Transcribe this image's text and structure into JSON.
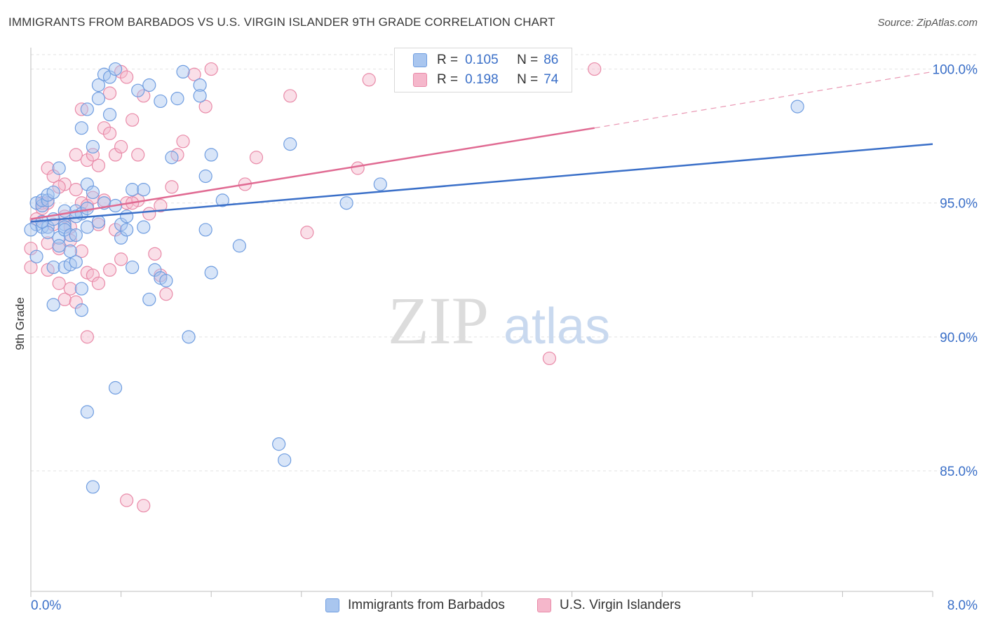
{
  "title": "IMMIGRANTS FROM BARBADOS VS U.S. VIRGIN ISLANDER 9TH GRADE CORRELATION CHART",
  "source": "Source: ZipAtlas.com",
  "watermark": {
    "zip": "ZIP",
    "atlas": "atlas"
  },
  "legend": {
    "r_label": "R =",
    "n_label": "N =",
    "series": [
      {
        "name": "Immigrants from Barbados",
        "r": "0.105",
        "n": "86"
      },
      {
        "name": "U.S. Virgin Islanders",
        "r": "0.198",
        "n": "74"
      }
    ]
  },
  "colors": {
    "blue_fill": "#a9c6ef",
    "blue_stroke": "#6f9de0",
    "blue_line": "#3a6fc8",
    "pink_fill": "#f5b7cb",
    "pink_stroke": "#e98aa8",
    "pink_line": "#e06a92",
    "tick_label": "#3a6fc8"
  },
  "chart_data": {
    "type": "scatter",
    "title": "IMMIGRANTS FROM BARBADOS VS U.S. VIRGIN ISLANDER 9TH GRADE CORRELATION CHART",
    "xlabel": "",
    "ylabel": "9th Grade",
    "xlim": [
      0,
      8
    ],
    "ylim": [
      80.5,
      100.8
    ],
    "x_tick_labels": [
      "0.0%",
      "8.0%"
    ],
    "y_ticks": [
      85,
      90,
      95,
      100
    ],
    "y_tick_labels": [
      "85.0%",
      "90.0%",
      "95.0%",
      "100.0%"
    ],
    "grid": true,
    "series": [
      {
        "name": "Immigrants from Barbados",
        "trend": {
          "x": [
            0,
            8
          ],
          "y": [
            94.3,
            97.2
          ]
        },
        "points": [
          [
            0.05,
            93.0
          ],
          [
            0.05,
            94.2
          ],
          [
            0.05,
            95.0
          ],
          [
            0.1,
            94.9
          ],
          [
            0.1,
            94.1
          ],
          [
            0.1,
            95.1
          ],
          [
            0.15,
            94.1
          ],
          [
            0.15,
            93.9
          ],
          [
            0.15,
            95.1
          ],
          [
            0.15,
            95.3
          ],
          [
            0.2,
            95.4
          ],
          [
            0.2,
            94.4
          ],
          [
            0.2,
            92.6
          ],
          [
            0.2,
            91.2
          ],
          [
            0.25,
            96.3
          ],
          [
            0.25,
            93.7
          ],
          [
            0.25,
            93.4
          ],
          [
            0.3,
            94.2
          ],
          [
            0.3,
            94.1
          ],
          [
            0.3,
            94.0
          ],
          [
            0.3,
            92.6
          ],
          [
            0.35,
            93.8
          ],
          [
            0.35,
            93.2
          ],
          [
            0.35,
            92.7
          ],
          [
            0.4,
            94.7
          ],
          [
            0.4,
            93.8
          ],
          [
            0.4,
            92.8
          ],
          [
            0.45,
            97.8
          ],
          [
            0.45,
            94.6
          ],
          [
            0.45,
            91.0
          ],
          [
            0.5,
            98.5
          ],
          [
            0.5,
            95.7
          ],
          [
            0.5,
            94.8
          ],
          [
            0.55,
            97.1
          ],
          [
            0.55,
            95.4
          ],
          [
            0.6,
            99.4
          ],
          [
            0.6,
            98.9
          ],
          [
            0.6,
            94.3
          ],
          [
            0.65,
            99.8
          ],
          [
            0.65,
            95.0
          ],
          [
            0.7,
            99.7
          ],
          [
            0.7,
            98.3
          ],
          [
            0.75,
            100.0
          ],
          [
            0.75,
            94.9
          ],
          [
            0.8,
            93.7
          ],
          [
            0.8,
            94.2
          ],
          [
            0.85,
            94.0
          ],
          [
            0.85,
            94.5
          ],
          [
            0.9,
            95.5
          ],
          [
            0.9,
            92.6
          ],
          [
            0.95,
            99.2
          ],
          [
            1.0,
            95.5
          ],
          [
            1.0,
            94.1
          ],
          [
            1.05,
            99.4
          ],
          [
            1.05,
            91.4
          ],
          [
            1.1,
            92.5
          ],
          [
            1.15,
            98.8
          ],
          [
            1.15,
            92.2
          ],
          [
            1.2,
            92.1
          ],
          [
            1.25,
            96.7
          ],
          [
            1.3,
            98.9
          ],
          [
            1.35,
            99.9
          ],
          [
            1.4,
            90.0
          ],
          [
            1.5,
            99.4
          ],
          [
            1.5,
            99.0
          ],
          [
            1.55,
            94.0
          ],
          [
            1.55,
            96.0
          ],
          [
            1.6,
            92.4
          ],
          [
            1.6,
            96.8
          ],
          [
            1.7,
            95.1
          ],
          [
            1.85,
            93.4
          ],
          [
            2.2,
            86.0
          ],
          [
            2.25,
            85.4
          ],
          [
            2.3,
            97.2
          ],
          [
            2.8,
            95.0
          ],
          [
            3.1,
            95.7
          ],
          [
            6.8,
            98.6
          ],
          [
            0.0,
            94.0
          ],
          [
            0.1,
            94.3
          ],
          [
            0.3,
            94.7
          ],
          [
            0.4,
            94.5
          ],
          [
            0.5,
            94.1
          ],
          [
            0.75,
            88.1
          ],
          [
            0.5,
            87.2
          ],
          [
            0.55,
            84.4
          ],
          [
            0.45,
            91.8
          ]
        ]
      },
      {
        "name": "U.S. Virgin Islanders",
        "trend": {
          "x": [
            0,
            5.0
          ],
          "y": [
            94.4,
            97.8
          ],
          "dashed_to": {
            "x": 8,
            "y": 99.9
          }
        },
        "points": [
          [
            0.0,
            93.3
          ],
          [
            0.0,
            92.6
          ],
          [
            0.05,
            94.4
          ],
          [
            0.1,
            95.0
          ],
          [
            0.15,
            96.3
          ],
          [
            0.15,
            95.0
          ],
          [
            0.15,
            92.5
          ],
          [
            0.2,
            96.0
          ],
          [
            0.2,
            94.2
          ],
          [
            0.25,
            93.3
          ],
          [
            0.25,
            92.0
          ],
          [
            0.3,
            95.7
          ],
          [
            0.3,
            94.5
          ],
          [
            0.3,
            91.4
          ],
          [
            0.35,
            94.1
          ],
          [
            0.35,
            93.6
          ],
          [
            0.4,
            96.8
          ],
          [
            0.4,
            95.5
          ],
          [
            0.4,
            91.3
          ],
          [
            0.45,
            98.5
          ],
          [
            0.45,
            95.0
          ],
          [
            0.45,
            93.2
          ],
          [
            0.5,
            96.6
          ],
          [
            0.5,
            94.9
          ],
          [
            0.5,
            92.4
          ],
          [
            0.5,
            90.0
          ],
          [
            0.55,
            96.8
          ],
          [
            0.55,
            95.2
          ],
          [
            0.55,
            92.3
          ],
          [
            0.6,
            96.4
          ],
          [
            0.6,
            92.0
          ],
          [
            0.65,
            97.8
          ],
          [
            0.65,
            95.1
          ],
          [
            0.7,
            99.1
          ],
          [
            0.7,
            92.5
          ],
          [
            0.75,
            96.8
          ],
          [
            0.75,
            94.0
          ],
          [
            0.8,
            99.9
          ],
          [
            0.8,
            97.1
          ],
          [
            0.8,
            92.9
          ],
          [
            0.85,
            99.7
          ],
          [
            0.85,
            95.0
          ],
          [
            0.9,
            98.1
          ],
          [
            0.95,
            96.8
          ],
          [
            0.95,
            95.1
          ],
          [
            1.0,
            99.0
          ],
          [
            1.05,
            94.6
          ],
          [
            1.1,
            93.1
          ],
          [
            1.15,
            92.3
          ],
          [
            1.2,
            91.6
          ],
          [
            1.25,
            95.6
          ],
          [
            1.3,
            96.8
          ],
          [
            1.35,
            97.3
          ],
          [
            1.45,
            99.8
          ],
          [
            1.55,
            98.6
          ],
          [
            1.6,
            100.0
          ],
          [
            1.9,
            95.7
          ],
          [
            2.0,
            96.7
          ],
          [
            2.3,
            99.0
          ],
          [
            2.45,
            93.9
          ],
          [
            2.9,
            96.3
          ],
          [
            3.0,
            99.6
          ],
          [
            4.6,
            89.2
          ],
          [
            5.0,
            100.0
          ],
          [
            0.15,
            93.5
          ],
          [
            0.35,
            91.8
          ],
          [
            0.6,
            94.2
          ],
          [
            0.9,
            95.0
          ],
          [
            1.15,
            94.9
          ],
          [
            0.7,
            97.6
          ],
          [
            0.25,
            95.6
          ],
          [
            0.85,
            83.9
          ],
          [
            1.0,
            83.7
          ],
          [
            0.1,
            94.8
          ]
        ]
      }
    ]
  }
}
